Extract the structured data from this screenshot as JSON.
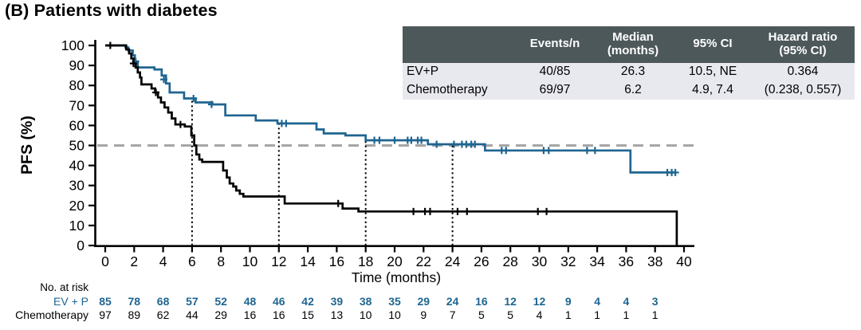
{
  "title": "(B) Patients with diabetes",
  "summary_table": {
    "headers": [
      "",
      "Events/n",
      "Median\n(months)",
      "95% CI",
      "Hazard ratio\n(95% CI)"
    ],
    "rows": [
      {
        "label": "EV+P",
        "events_n": "40/85",
        "median": "26.3",
        "ci": "10.5, NE",
        "hr": "0.364"
      },
      {
        "label": "Chemotherapy",
        "events_n": "69/97",
        "median": "6.2",
        "ci": "4.9, 7.4",
        "hr": "(0.238, 0.557)"
      }
    ],
    "header_bg": "#4d585a",
    "header_text_color": "#ffffff",
    "row_bg": "#e8e8ef"
  },
  "chart_data": {
    "type": "line",
    "subtype": "kaplan-meier-step",
    "title": "(B) Patients with diabetes",
    "xlabel": "Time (months)",
    "ylabel": "PFS (%)",
    "xlim": [
      0,
      40
    ],
    "ylim": [
      0,
      100
    ],
    "xticks": [
      0,
      2,
      4,
      6,
      8,
      10,
      12,
      14,
      16,
      18,
      20,
      22,
      24,
      26,
      28,
      30,
      32,
      34,
      36,
      38,
      40
    ],
    "yticks": [
      0,
      10,
      20,
      30,
      40,
      50,
      60,
      70,
      80,
      90,
      100
    ],
    "grid": false,
    "reference_line_y": 50,
    "reference_line_color": "#a6a6a6",
    "milestone_dotted_x": [
      6,
      12,
      18,
      24
    ],
    "series": [
      {
        "name": "EV+P",
        "color": "#1f6591",
        "steps": [
          [
            0,
            100
          ],
          [
            1.4,
            99
          ],
          [
            1.6,
            97.5
          ],
          [
            1.9,
            95
          ],
          [
            2.05,
            92
          ],
          [
            2.25,
            89
          ],
          [
            3.4,
            88
          ],
          [
            3.9,
            85
          ],
          [
            4.2,
            81
          ],
          [
            4.45,
            76.5
          ],
          [
            5.45,
            73.5
          ],
          [
            6.25,
            71.5
          ],
          [
            7.4,
            70.5
          ],
          [
            8.3,
            65
          ],
          [
            10.4,
            62.5
          ],
          [
            11.9,
            61
          ],
          [
            14.6,
            58
          ],
          [
            15.1,
            56
          ],
          [
            16.6,
            55
          ],
          [
            18,
            52.6
          ],
          [
            22.3,
            50.6
          ],
          [
            26.25,
            47.5
          ],
          [
            36.3,
            36.5
          ],
          [
            39.4,
            36.5
          ]
        ],
        "censors": [
          [
            2.1,
            92
          ],
          [
            4.05,
            83
          ],
          [
            6.1,
            73.5
          ],
          [
            7.35,
            70.5
          ],
          [
            12.2,
            61
          ],
          [
            12.5,
            61
          ],
          [
            18.6,
            52.6
          ],
          [
            18.95,
            52.6
          ],
          [
            20,
            52.6
          ],
          [
            20.9,
            52.6
          ],
          [
            21.15,
            52.6
          ],
          [
            21.6,
            52.6
          ],
          [
            21.85,
            52.6
          ],
          [
            22.9,
            50.6
          ],
          [
            24.1,
            50.6
          ],
          [
            24.65,
            50.6
          ],
          [
            24.95,
            50.6
          ],
          [
            25.3,
            50.6
          ],
          [
            25.55,
            50.6
          ],
          [
            27.4,
            47.5
          ],
          [
            27.7,
            47.5
          ],
          [
            30.3,
            47.5
          ],
          [
            30.65,
            47.5
          ],
          [
            33.3,
            47.5
          ],
          [
            33.85,
            47.5
          ],
          [
            38.85,
            36.5
          ],
          [
            39.15,
            36.5
          ],
          [
            39.4,
            36.5
          ]
        ]
      },
      {
        "name": "Chemotherapy",
        "color": "#000000",
        "steps": [
          [
            0,
            100
          ],
          [
            1.45,
            98
          ],
          [
            1.65,
            96
          ],
          [
            1.8,
            93.5
          ],
          [
            1.95,
            91
          ],
          [
            2.1,
            89
          ],
          [
            2.25,
            86.5
          ],
          [
            2.4,
            84
          ],
          [
            2.5,
            80.5
          ],
          [
            3.2,
            78.5
          ],
          [
            3.45,
            76.5
          ],
          [
            3.65,
            74
          ],
          [
            3.85,
            71.5
          ],
          [
            4.1,
            69
          ],
          [
            4.35,
            66.5
          ],
          [
            4.6,
            63.5
          ],
          [
            4.85,
            60.5
          ],
          [
            5.5,
            59.5
          ],
          [
            5.95,
            55
          ],
          [
            6.15,
            50
          ],
          [
            6.3,
            45.5
          ],
          [
            6.5,
            43
          ],
          [
            6.7,
            41.8
          ],
          [
            8.15,
            37.5
          ],
          [
            8.4,
            34
          ],
          [
            8.6,
            31
          ],
          [
            8.85,
            29.5
          ],
          [
            9.05,
            27.5
          ],
          [
            9.3,
            25.8
          ],
          [
            9.55,
            24.5
          ],
          [
            12.4,
            21
          ],
          [
            16.4,
            18.5
          ],
          [
            17.5,
            17
          ],
          [
            39.5,
            0
          ]
        ],
        "censors": [
          [
            0.35,
            100
          ],
          [
            1.95,
            91
          ],
          [
            3.5,
            76.5
          ],
          [
            5.2,
            60.5
          ],
          [
            16.1,
            21
          ],
          [
            21.3,
            17
          ],
          [
            22.1,
            17
          ],
          [
            22.45,
            17
          ],
          [
            24.35,
            17
          ],
          [
            25,
            17
          ],
          [
            29.9,
            17
          ],
          [
            30.5,
            17
          ]
        ]
      }
    ]
  },
  "risk_table": {
    "heading": "No. at risk",
    "times": [
      0,
      2,
      4,
      6,
      8,
      10,
      12,
      14,
      16,
      18,
      20,
      22,
      24,
      26,
      28,
      30,
      32,
      34,
      36,
      38
    ],
    "rows": [
      {
        "label": "EV + P",
        "color": "#1f6591",
        "bold": true,
        "counts": [
          85,
          78,
          68,
          57,
          52,
          48,
          46,
          42,
          39,
          38,
          35,
          29,
          24,
          16,
          12,
          12,
          9,
          4,
          4,
          3
        ]
      },
      {
        "label": "Chemotherapy",
        "color": "#000000",
        "bold": false,
        "counts": [
          97,
          89,
          62,
          44,
          29,
          16,
          16,
          15,
          13,
          10,
          10,
          9,
          7,
          5,
          5,
          4,
          1,
          1,
          1,
          1
        ]
      }
    ]
  }
}
